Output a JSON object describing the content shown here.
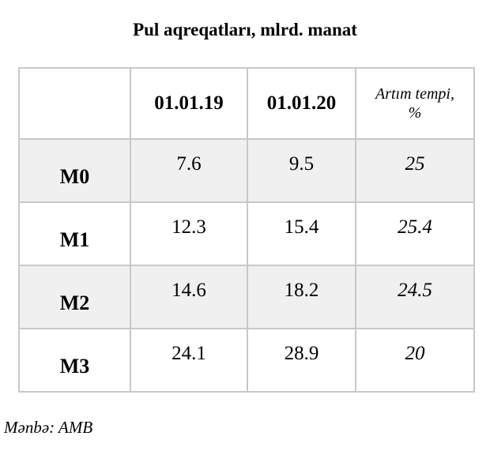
{
  "title": "Pul aqreqatları, mlrd. manat",
  "table": {
    "headers": [
      "",
      "01.01.19",
      "01.01.20",
      "Artım tempi, %"
    ],
    "rows": [
      {
        "label": "M0",
        "v2019": "7.6",
        "v2020": "9.5",
        "growth": "25"
      },
      {
        "label": "M1",
        "v2019": "12.3",
        "v2020": "15.4",
        "growth": "25.4"
      },
      {
        "label": "M2",
        "v2019": "14.6",
        "v2020": "18.2",
        "growth": "24.5"
      },
      {
        "label": "M3",
        "v2019": "24.1",
        "v2020": "28.9",
        "growth": "20"
      }
    ]
  },
  "source": "Mənbə: AMB",
  "colors": {
    "alt_row": "#f0f0f0",
    "border": "#c8c8c8"
  }
}
